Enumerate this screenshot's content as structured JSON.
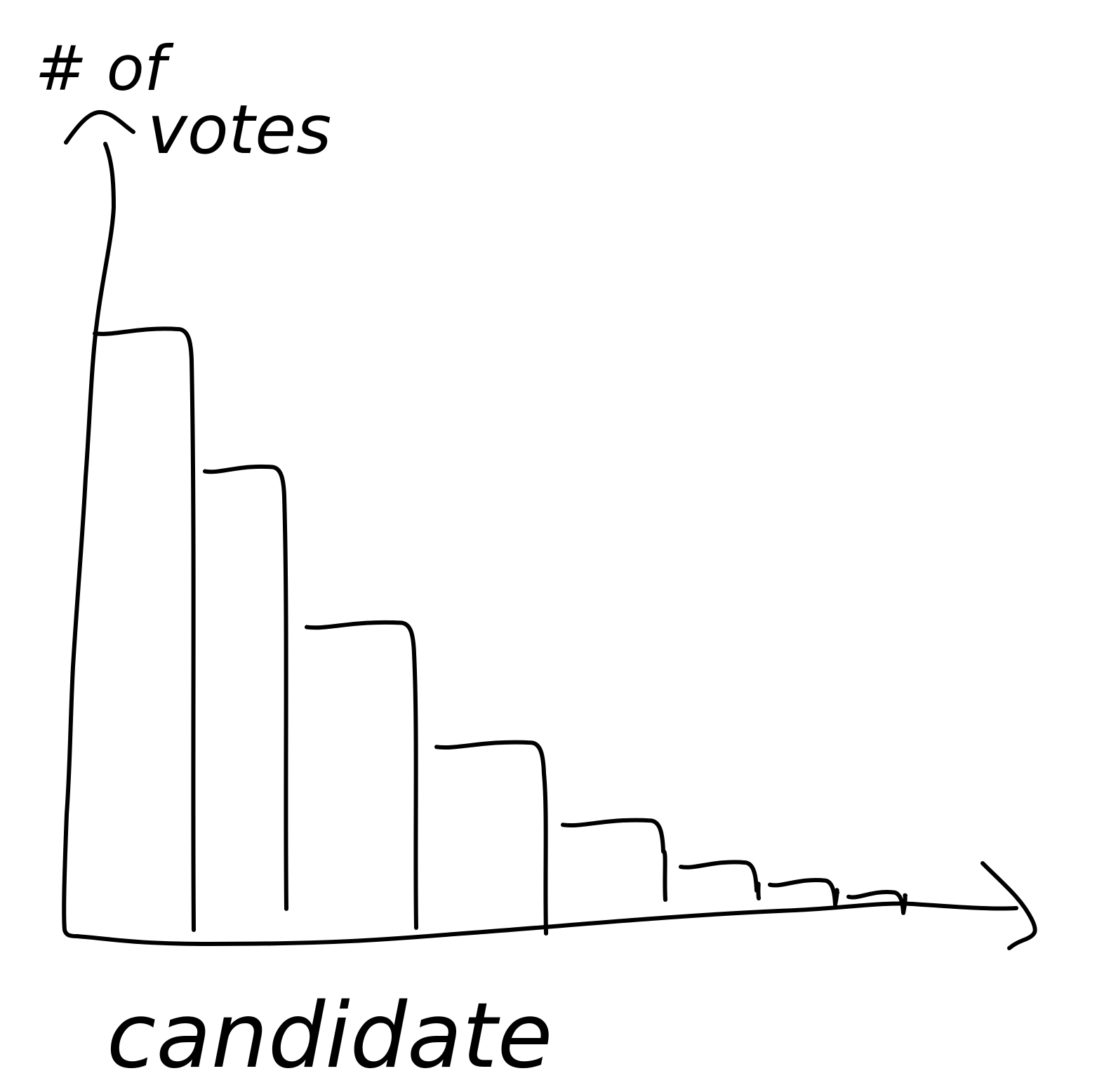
{
  "chart_data": {
    "type": "bar",
    "ylabel": "# of votes",
    "xlabel": "candidate",
    "categories": [
      "",
      "",
      "",
      "",
      "",
      "",
      "",
      ""
    ],
    "values": [
      100,
      77,
      51,
      31,
      18,
      11,
      8,
      6
    ],
    "ylim": [
      0,
      130
    ],
    "grid": false,
    "legend": "none",
    "style": "hand-drawn",
    "ink_color": "#000000",
    "background_color": "#ffffff"
  }
}
